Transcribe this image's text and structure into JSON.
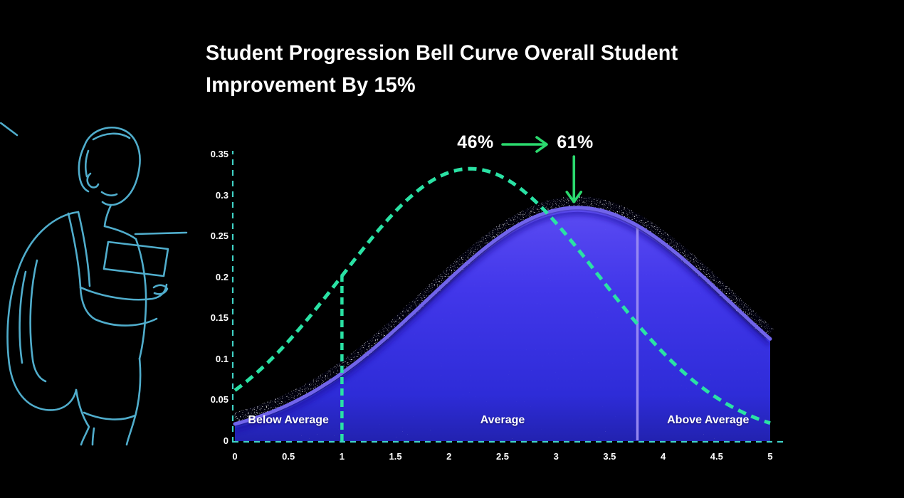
{
  "title": "Student Progression Bell Curve Overall Student\nImprovement By 15%",
  "colors": {
    "background": "#000000",
    "title_text": "#ffffff",
    "mint_green": "#2ae2a4",
    "axis_teal": "#40d2c6",
    "arrow_green": "#2bd96e",
    "purple_stroke": "#7164eb",
    "light_vline": "#9a8cf3",
    "fill_top": "#5b4bf2",
    "fill_mid": "#4237ea",
    "fill_bottom": "#2222b0",
    "illustration_blue": "#55b7d7"
  },
  "chart_data": {
    "type": "area",
    "title": "Student Progression Bell Curve Overall Student Improvement By 15%",
    "xlim": [
      0,
      5
    ],
    "ylim": [
      0,
      0.35
    ],
    "grid": false,
    "x_tick_labels": [
      "0",
      "0.5",
      "1",
      "1.5",
      "2",
      "2.5",
      "3",
      "3.5",
      "4",
      "4.5",
      "5"
    ],
    "x_tick_values": [
      0,
      0.5,
      1,
      1.5,
      2,
      2.5,
      3,
      3.5,
      4,
      4.5,
      5
    ],
    "y_tick_labels": [
      "0",
      "0.05",
      "0.1",
      "0.15",
      "0.2",
      "0.25",
      "0.3",
      "0.35"
    ],
    "y_tick_values": [
      0,
      0.05,
      0.1,
      0.15,
      0.2,
      0.25,
      0.3,
      0.35
    ],
    "series": [
      {
        "id": "before",
        "style": "dashed-line",
        "color": "#2ae2a4",
        "gauss": {
          "mean": 2.2,
          "sigma": 1.2,
          "peak": 0.3325
        },
        "x": [
          0,
          0.25,
          0.5,
          0.75,
          1,
          1.25,
          1.5,
          1.75,
          2,
          2.25,
          2.5,
          2.75,
          3,
          3.25,
          3.5,
          3.75,
          4,
          4.25,
          4.5,
          4.75,
          5
        ],
        "y": [
          0.0619,
          0.0888,
          0.1219,
          0.1602,
          0.2017,
          0.2431,
          0.2805,
          0.3099,
          0.3279,
          0.3322,
          0.3223,
          0.2994,
          0.2662,
          0.2267,
          0.1849,
          0.1444,
          0.108,
          0.0773,
          0.053,
          0.0348,
          0.0218
        ]
      },
      {
        "id": "after",
        "style": "filled-area",
        "color": "#7164eb",
        "gauss": {
          "mean": 3.2,
          "sigma": 1.4,
          "peak": 0.285
        },
        "x": [
          0,
          0.25,
          0.5,
          0.75,
          1,
          1.25,
          1.5,
          1.75,
          2,
          2.25,
          2.5,
          2.75,
          3,
          3.25,
          3.5,
          3.75,
          4,
          4.25,
          4.5,
          4.75,
          5
        ],
        "y": [
          0.0209,
          0.031,
          0.0444,
          0.0616,
          0.0829,
          0.108,
          0.1364,
          0.1667,
          0.1974,
          0.2264,
          0.2515,
          0.2706,
          0.2821,
          0.2848,
          0.2785,
          0.2638,
          0.2421,
          0.2151,
          0.1852,
          0.1544,
          0.1247
        ]
      }
    ],
    "annotation": {
      "from_label": "46%",
      "to_label": "61%"
    },
    "regions": [
      {
        "label": "Below Average",
        "x_center": 0.5
      },
      {
        "label": "Average",
        "x_center": 2.5
      },
      {
        "label": "Above Average",
        "x_center": 4.42
      }
    ],
    "vlines": [
      {
        "x": 1,
        "y_top": 0.2017,
        "style": "dashed",
        "color": "#2ae2a4"
      },
      {
        "x": 3.76,
        "y_top": 0.2638,
        "style": "solid",
        "color": "#9a8cf3"
      }
    ]
  }
}
